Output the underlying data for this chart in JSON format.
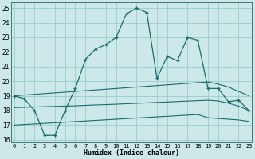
{
  "xlabel": "Humidex (Indice chaleur)",
  "background_color": "#cce8e8",
  "grid_color": "#99cccc",
  "line_color": "#1a6b6b",
  "x": [
    0,
    1,
    2,
    3,
    4,
    5,
    6,
    7,
    8,
    9,
    10,
    11,
    12,
    13,
    14,
    15,
    16,
    17,
    18,
    19,
    20,
    21,
    22,
    23
  ],
  "y_main": [
    19.0,
    18.8,
    18.0,
    16.3,
    16.3,
    18.0,
    19.5,
    21.5,
    22.2,
    22.5,
    23.0,
    24.6,
    25.0,
    24.7,
    20.2,
    21.7,
    21.4,
    23.0,
    22.8,
    19.5,
    19.5,
    18.6,
    18.7,
    18.0
  ],
  "y_line1": [
    19.0,
    19.05,
    19.1,
    19.15,
    19.2,
    19.25,
    19.3,
    19.35,
    19.4,
    19.45,
    19.5,
    19.55,
    19.6,
    19.65,
    19.7,
    19.75,
    19.8,
    19.85,
    19.9,
    19.95,
    19.8,
    19.6,
    19.3,
    19.0
  ],
  "y_line2": [
    18.2,
    18.22,
    18.24,
    18.26,
    18.28,
    18.3,
    18.32,
    18.35,
    18.38,
    18.4,
    18.43,
    18.46,
    18.49,
    18.52,
    18.55,
    18.58,
    18.61,
    18.64,
    18.67,
    18.7,
    18.65,
    18.5,
    18.3,
    18.0
  ],
  "y_line3": [
    17.0,
    17.04,
    17.08,
    17.12,
    17.16,
    17.2,
    17.24,
    17.28,
    17.32,
    17.36,
    17.4,
    17.44,
    17.48,
    17.52,
    17.56,
    17.6,
    17.64,
    17.68,
    17.72,
    17.5,
    17.45,
    17.4,
    17.35,
    17.25
  ],
  "xlim": [
    -0.3,
    23.3
  ],
  "ylim": [
    15.8,
    25.4
  ],
  "yticks": [
    16,
    17,
    18,
    19,
    20,
    21,
    22,
    23,
    24,
    25
  ],
  "xticks": [
    0,
    1,
    2,
    3,
    4,
    5,
    6,
    7,
    8,
    9,
    10,
    11,
    12,
    13,
    14,
    15,
    16,
    17,
    18,
    19,
    20,
    21,
    22,
    23
  ]
}
